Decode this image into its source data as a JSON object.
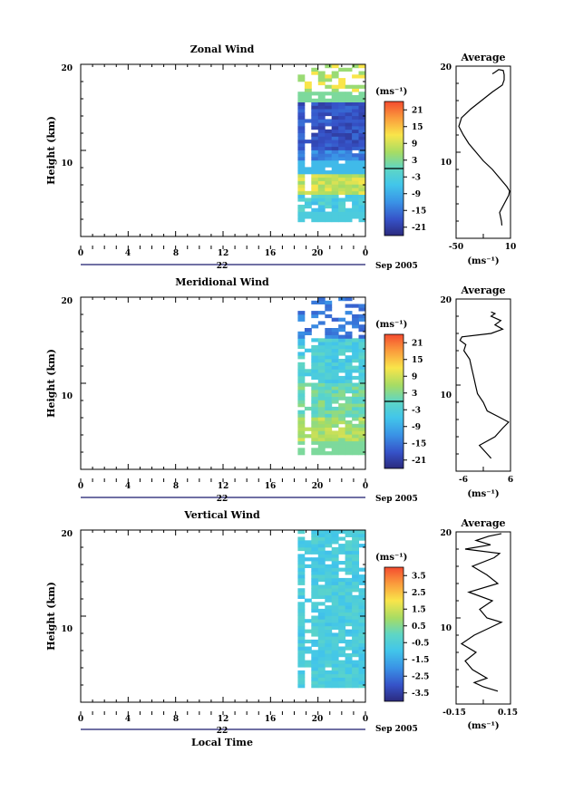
{
  "chart_data": [
    {
      "type": "heatmap",
      "title": "Zonal Wind",
      "ylabel": "Height (km)",
      "xlabel": "",
      "ylim": [
        0,
        20
      ],
      "yticks": [
        "10",
        "20"
      ],
      "xticks": [
        "0",
        "4",
        "8",
        "12",
        "16",
        "20",
        "0"
      ],
      "date_label": "22",
      "date_suffix": "Sep 2005",
      "colorbar": {
        "unit_label": "(ms⁻¹)",
        "ticks": [
          "21",
          "15",
          "9",
          "3",
          "-3",
          "-9",
          "-15",
          "-21"
        ],
        "range": [
          -24,
          24
        ]
      },
      "data_start_hour": 18.3,
      "profile": {
        "title": "Average",
        "xlabel": "(ms⁻¹)",
        "xticks": [
          "-50",
          "10"
        ],
        "xlim": [
          -50,
          10
        ],
        "ylim": [
          0,
          20
        ],
        "yticks": [
          "10",
          "20"
        ],
        "points": [
          [
            0.5,
            1.5
          ],
          [
            0,
            2
          ],
          [
            -2,
            3
          ],
          [
            3,
            4
          ],
          [
            8,
            5
          ],
          [
            9,
            5.5
          ],
          [
            6,
            6
          ],
          [
            -2,
            7
          ],
          [
            -10,
            8
          ],
          [
            -20,
            9
          ],
          [
            -28,
            10
          ],
          [
            -36,
            11
          ],
          [
            -42,
            12
          ],
          [
            -47,
            13
          ],
          [
            -44,
            14
          ],
          [
            -34,
            15
          ],
          [
            -22,
            16
          ],
          [
            -10,
            17
          ],
          [
            1,
            17.8
          ],
          [
            3,
            18.4
          ],
          [
            3,
            19
          ],
          [
            2,
            19.5
          ],
          [
            -3,
            19.6
          ],
          [
            -7,
            19.3
          ],
          [
            -10,
            19.1
          ]
        ]
      }
    },
    {
      "type": "heatmap",
      "title": "Meridional Wind",
      "ylabel": "Height (km)",
      "xlabel": "",
      "ylim": [
        0,
        20
      ],
      "yticks": [
        "10",
        "20"
      ],
      "xticks": [
        "0",
        "4",
        "8",
        "12",
        "16",
        "20",
        "0"
      ],
      "date_label": "22",
      "date_suffix": "Sep 2005",
      "colorbar": {
        "unit_label": "(ms⁻¹)",
        "ticks": [
          "21",
          "15",
          "9",
          "3",
          "-3",
          "-9",
          "-15",
          "-21"
        ],
        "range": [
          -24,
          24
        ]
      },
      "data_start_hour": 18.3,
      "profile": {
        "title": "Average",
        "xlabel": "(ms⁻¹)",
        "xticks": [
          "-6",
          "6"
        ],
        "xlim": [
          -8,
          6
        ],
        "ylim": [
          0,
          20
        ],
        "yticks": [
          "10",
          "20"
        ],
        "points": [
          [
            1,
            1.5
          ],
          [
            0,
            2
          ],
          [
            -2,
            3
          ],
          [
            2,
            4
          ],
          [
            4,
            5
          ],
          [
            5.5,
            5.7
          ],
          [
            3,
            6.3
          ],
          [
            0,
            7
          ],
          [
            -1,
            8
          ],
          [
            -2.5,
            9
          ],
          [
            -3,
            10
          ],
          [
            -3.5,
            11
          ],
          [
            -4,
            12
          ],
          [
            -4.5,
            13
          ],
          [
            -6,
            14
          ],
          [
            -5.5,
            14.7
          ],
          [
            -7,
            15.2
          ],
          [
            -6.5,
            15.6
          ],
          [
            1,
            16
          ],
          [
            4,
            16.5
          ],
          [
            2,
            17
          ],
          [
            3.5,
            17.5
          ],
          [
            1,
            18
          ],
          [
            2,
            18.3
          ],
          [
            1,
            18.5
          ]
        ]
      }
    },
    {
      "type": "heatmap",
      "title": "Vertical Wind",
      "ylabel": "Height (km)",
      "xlabel": "Local Time",
      "ylim": [
        0,
        20
      ],
      "yticks": [
        "10",
        "20"
      ],
      "xticks": [
        "0",
        "4",
        "8",
        "12",
        "16",
        "20",
        "0"
      ],
      "date_label": "22",
      "date_suffix": "Sep 2005",
      "colorbar": {
        "unit_label": "(ms⁻¹)",
        "ticks": [
          "3.5",
          "2.5",
          "1.5",
          "0.5",
          "-0.5",
          "-1.5",
          "-2.5",
          "-3.5"
        ],
        "range": [
          -4,
          4
        ]
      },
      "data_start_hour": 18.3,
      "profile": {
        "title": "Average",
        "xlabel": "(ms⁻¹)",
        "xticks": [
          "-0.15",
          "0.15"
        ],
        "xlim": [
          -0.15,
          0.15
        ],
        "ylim": [
          0,
          20
        ],
        "yticks": [
          "10",
          "20"
        ],
        "points": [
          [
            0.08,
            1.5
          ],
          [
            0,
            2
          ],
          [
            -0.05,
            2.5
          ],
          [
            0.02,
            3
          ],
          [
            -0.06,
            4
          ],
          [
            -0.1,
            5
          ],
          [
            -0.04,
            6
          ],
          [
            -0.12,
            7
          ],
          [
            -0.05,
            8
          ],
          [
            0.05,
            9
          ],
          [
            0.1,
            9.5
          ],
          [
            0.02,
            10
          ],
          [
            -0.02,
            11
          ],
          [
            0.05,
            12
          ],
          [
            -0.08,
            13
          ],
          [
            0.08,
            14
          ],
          [
            0.02,
            15
          ],
          [
            -0.06,
            16
          ],
          [
            0.06,
            17
          ],
          [
            0.09,
            17.5
          ],
          [
            -0.1,
            18
          ],
          [
            0.04,
            18.5
          ],
          [
            -0.04,
            19
          ],
          [
            0.03,
            19.5
          ],
          [
            0.1,
            19.8
          ]
        ]
      }
    }
  ]
}
